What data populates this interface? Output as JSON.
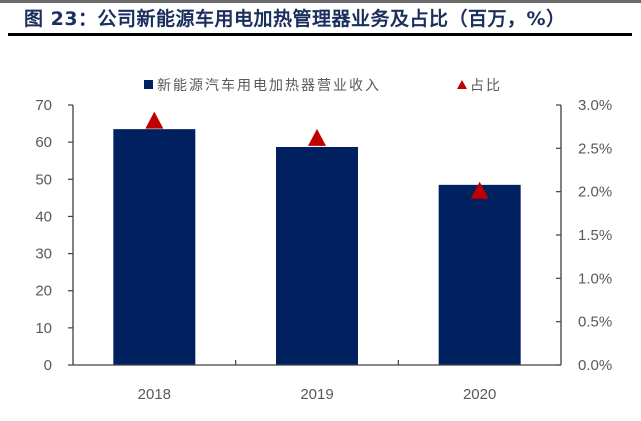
{
  "title": "图 23：公司新能源车用电加热管理器业务及占比（百万，%）",
  "legend": {
    "bar_label": "新能源汽车用电加热器营业收入",
    "marker_label": "占比"
  },
  "colors": {
    "bar": "#002060",
    "marker": "#c00000",
    "title": "#1b2f5c",
    "axis_text": "#595959"
  },
  "axes": {
    "left_ticks": [
      "0",
      "10",
      "20",
      "30",
      "40",
      "50",
      "60",
      "70"
    ],
    "right_ticks": [
      "0.0%",
      "0.5%",
      "1.0%",
      "1.5%",
      "2.0%",
      "2.5%",
      "3.0%"
    ],
    "categories": [
      "2018",
      "2019",
      "2020"
    ]
  },
  "chart_data": {
    "type": "bar",
    "title": "图 23：公司新能源车用电加热管理器业务及占比（百万，%）",
    "categories": [
      "2018",
      "2019",
      "2020"
    ],
    "series": [
      {
        "name": "新能源汽车用电加热器营业收入",
        "type": "bar",
        "axis": "left",
        "values": [
          63.5,
          58.7,
          48.5
        ],
        "color": "#002060"
      },
      {
        "name": "占比",
        "type": "scatter",
        "marker": "triangle",
        "axis": "right",
        "values": [
          2.82,
          2.62,
          2.01
        ],
        "unit": "%",
        "color": "#c00000"
      }
    ],
    "xlabel": "",
    "ylabel": "百万",
    "y2label": "%",
    "ylim": [
      0,
      70
    ],
    "y2lim": [
      0,
      3.0
    ],
    "yticks": [
      0,
      10,
      20,
      30,
      40,
      50,
      60,
      70
    ],
    "y2ticks": [
      0.0,
      0.5,
      1.0,
      1.5,
      2.0,
      2.5,
      3.0
    ],
    "grid": false,
    "legend_position": "top"
  }
}
